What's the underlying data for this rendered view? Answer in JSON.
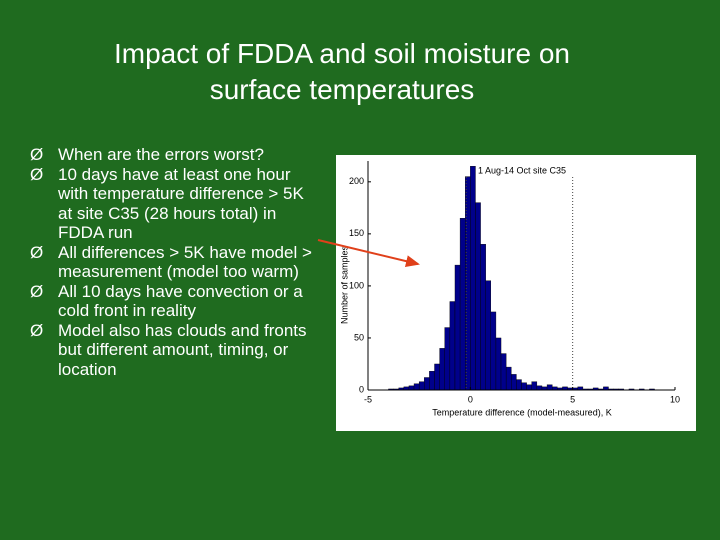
{
  "slide": {
    "title": "Impact of FDDA and soil moisture on surface temperatures",
    "bullet": "Ø",
    "bullets": [
      "When are the errors worst?",
      "10 days have at least one hour with temperature difference > 5K at site C35 (28 hours total) in FDDA run",
      "All differences > 5K have model > measurement (model too warm)",
      "All 10 days have convection or a cold front in reality",
      "Model also has clouds and fronts but different amount, timing, or location"
    ]
  },
  "chart_data": {
    "type": "histogram",
    "title": "1 Aug-14 Oct site C35",
    "x_label": "Temperature difference (model-measured), K",
    "y_label": "Number of samples",
    "color": "#00008b",
    "bins": [
      -4.0,
      -3.75,
      -3.5,
      -3.25,
      -3.0,
      -2.75,
      -2.5,
      -2.25,
      -2.0,
      -1.75,
      -1.5,
      -1.25,
      -1.0,
      -0.75,
      -0.5,
      -0.25,
      0.0,
      0.25,
      0.5,
      0.75,
      1.0,
      1.25,
      1.5,
      1.75,
      2.0,
      2.25,
      2.5,
      2.75,
      3.0,
      3.25,
      3.5,
      3.75,
      4.0,
      4.25,
      4.5,
      4.75,
      5.0,
      5.25,
      5.5,
      5.75,
      6.0,
      6.25,
      6.5,
      6.75,
      7.0,
      7.25,
      7.5,
      7.75,
      8.0,
      8.25,
      8.5,
      8.75,
      9.0
    ],
    "values": [
      1,
      1,
      2,
      3,
      4,
      6,
      8,
      12,
      18,
      25,
      40,
      60,
      85,
      120,
      165,
      205,
      215,
      180,
      140,
      105,
      75,
      50,
      35,
      22,
      15,
      10,
      7,
      5,
      8,
      4,
      3,
      5,
      3,
      2,
      3,
      2,
      2,
      3,
      1,
      1,
      2,
      1,
      3,
      1,
      1,
      1,
      0,
      1,
      0,
      1,
      0,
      1
    ],
    "vlines": [
      -0.2,
      5
    ],
    "xlim": [
      -5,
      10
    ],
    "xticks": [
      -5,
      0,
      5,
      10
    ],
    "ylim": [
      0,
      220
    ],
    "yticks": [
      0,
      50,
      100,
      150,
      200
    ]
  }
}
